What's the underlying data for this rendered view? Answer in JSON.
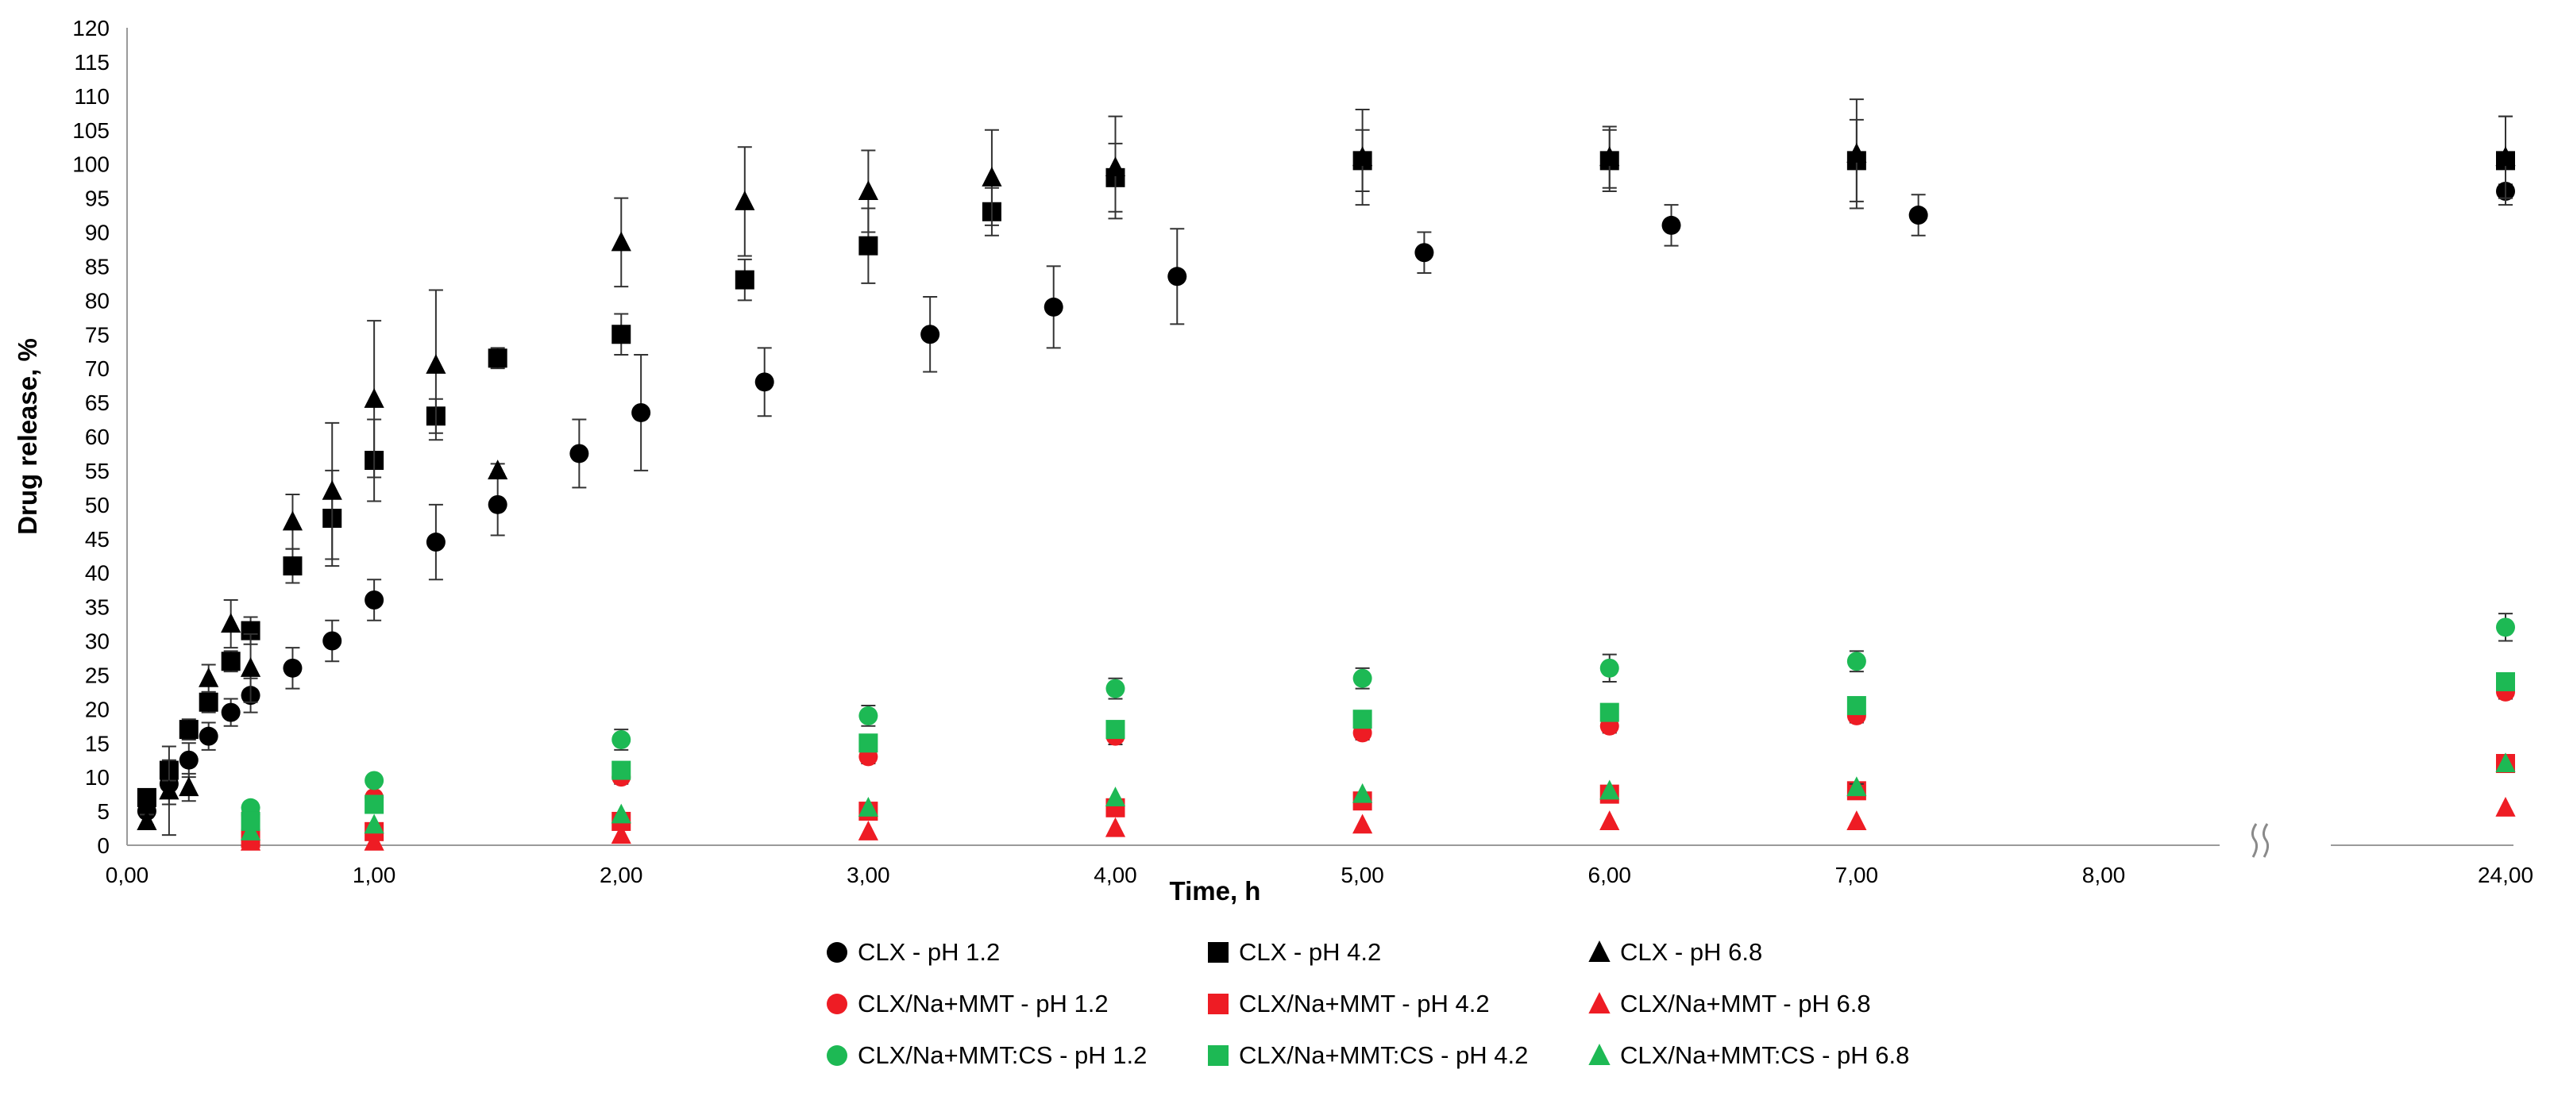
{
  "chart_data": {
    "type": "scatter",
    "xlabel": "Time, h",
    "ylabel": "Drug release, %",
    "ylim": [
      0,
      120
    ],
    "y_ticks": [
      "0",
      "5",
      "10",
      "15",
      "20",
      "25",
      "30",
      "35",
      "40",
      "45",
      "50",
      "55",
      "60",
      "65",
      "70",
      "75",
      "80",
      "85",
      "90",
      "95",
      "100",
      "105",
      "110",
      "115",
      "120"
    ],
    "x_ticks": [
      "0,00",
      "1,00",
      "2,00",
      "3,00",
      "4,00",
      "5,00",
      "6,00",
      "7,00",
      "8,00",
      "24,00"
    ],
    "x_break": "8 to 24",
    "legend_position": "bottom",
    "series": [
      {
        "name": "CLX - pH 1.2",
        "color": "#000000",
        "marker": "circle",
        "points": [
          [
            0.08,
            5
          ],
          [
            0.17,
            9
          ],
          [
            0.25,
            12.5
          ],
          [
            0.33,
            16
          ],
          [
            0.42,
            19.5
          ],
          [
            0.5,
            22
          ],
          [
            0.67,
            26
          ],
          [
            0.83,
            30
          ],
          [
            1.0,
            36
          ],
          [
            1.25,
            44.5
          ],
          [
            1.5,
            50
          ],
          [
            1.83,
            57.5
          ],
          [
            2.08,
            63.5
          ],
          [
            2.58,
            68
          ],
          [
            3.25,
            75
          ],
          [
            3.75,
            79
          ],
          [
            4.25,
            83.5
          ],
          [
            5.25,
            87
          ],
          [
            6.25,
            91
          ],
          [
            7.25,
            92.5
          ],
          [
            24,
            96
          ]
        ],
        "err": [
          2,
          3,
          2.5,
          2,
          2,
          2.5,
          3,
          3,
          3,
          5.5,
          4.5,
          5,
          8.5,
          5,
          5.5,
          6,
          7,
          3,
          3,
          3,
          1
        ]
      },
      {
        "name": "CLX - pH 4.2",
        "color": "#000000",
        "marker": "square",
        "points": [
          [
            0.08,
            7
          ],
          [
            0.17,
            11
          ],
          [
            0.25,
            17
          ],
          [
            0.33,
            21
          ],
          [
            0.42,
            27
          ],
          [
            0.5,
            31.5
          ],
          [
            0.67,
            41
          ],
          [
            0.83,
            48
          ],
          [
            1.0,
            56.5
          ],
          [
            1.25,
            63
          ],
          [
            1.5,
            71.5
          ],
          [
            2.0,
            75
          ],
          [
            2.5,
            83
          ],
          [
            3.0,
            88
          ],
          [
            3.5,
            93
          ],
          [
            4.0,
            98
          ],
          [
            5.0,
            100.5
          ],
          [
            6.0,
            100.5
          ],
          [
            7.0,
            100.5
          ],
          [
            24,
            100.5
          ]
        ],
        "err": [
          1,
          1.5,
          1.5,
          1.5,
          1.5,
          2,
          2.5,
          7,
          6,
          2.5,
          1.5,
          3,
          3,
          5.5,
          3.5,
          5,
          4.5,
          4.5,
          6,
          6.5
        ]
      },
      {
        "name": "CLX - pH 6.8",
        "color": "#000000",
        "marker": "triangle",
        "points": [
          [
            0.08,
            3.5
          ],
          [
            0.17,
            8
          ],
          [
            0.25,
            8.5
          ],
          [
            0.33,
            24.5
          ],
          [
            0.42,
            32.5
          ],
          [
            0.5,
            26
          ],
          [
            0.67,
            47.5
          ],
          [
            0.83,
            52
          ],
          [
            1.0,
            65.5
          ],
          [
            1.25,
            70.5
          ],
          [
            1.5,
            55
          ],
          [
            2.0,
            88.5
          ],
          [
            2.5,
            94.5
          ],
          [
            3.0,
            96
          ],
          [
            3.5,
            98
          ],
          [
            4.0,
            99.5
          ],
          [
            5.0,
            101
          ],
          [
            6.0,
            101
          ],
          [
            7.0,
            101.5
          ],
          [
            24,
            101
          ]
        ],
        "err": [
          1,
          6.5,
          2,
          2,
          3.5,
          5,
          4,
          10,
          11.5,
          11,
          1,
          6.5,
          8,
          6,
          7,
          7.5,
          7,
          4.5,
          8,
          6
        ]
      },
      {
        "name": "CLX/Na+MMT - pH 1.2",
        "color": "#ee1c24",
        "marker": "circle",
        "points": [
          [
            0.5,
            4.5
          ],
          [
            1.0,
            7
          ],
          [
            2.0,
            10
          ],
          [
            3.0,
            13
          ],
          [
            4.0,
            16
          ],
          [
            5.0,
            16.5
          ],
          [
            6.0,
            17.5
          ],
          [
            7.0,
            19
          ],
          [
            24,
            22.5
          ]
        ],
        "err": [
          0,
          0.5,
          1,
          1,
          1.2,
          1,
          1,
          1,
          1
        ]
      },
      {
        "name": "CLX/Na+MMT - pH 4.2",
        "color": "#ee1c24",
        "marker": "square",
        "points": [
          [
            0.5,
            1
          ],
          [
            1.0,
            2
          ],
          [
            2.0,
            3.5
          ],
          [
            3.0,
            5
          ],
          [
            4.0,
            5.5
          ],
          [
            5.0,
            6.5
          ],
          [
            6.0,
            7.5
          ],
          [
            7.0,
            8
          ],
          [
            24,
            12
          ]
        ],
        "err": [
          0,
          0,
          0,
          0,
          0,
          0,
          0,
          0,
          0
        ]
      },
      {
        "name": "CLX/Na+MMT - pH 6.8",
        "color": "#ee1c24",
        "marker": "triangle",
        "points": [
          [
            0.5,
            0.5
          ],
          [
            1.0,
            0.5
          ],
          [
            2.0,
            1.5
          ],
          [
            3.0,
            2
          ],
          [
            4.0,
            2.5
          ],
          [
            5.0,
            3
          ],
          [
            6.0,
            3.5
          ],
          [
            7.0,
            3.5
          ],
          [
            24,
            5.5
          ]
        ],
        "err": [
          0,
          0,
          0,
          0,
          0,
          0,
          0,
          0,
          0
        ]
      },
      {
        "name": "CLX/Na+MMT:CS - pH 1.2",
        "color": "#1db954",
        "marker": "circle",
        "points": [
          [
            0.5,
            5.5
          ],
          [
            1.0,
            9.5
          ],
          [
            2.0,
            15.5
          ],
          [
            3.0,
            19
          ],
          [
            4.0,
            23
          ],
          [
            5.0,
            24.5
          ],
          [
            6.0,
            26
          ],
          [
            7.0,
            27
          ],
          [
            24,
            32
          ]
        ],
        "err": [
          0.5,
          0.8,
          1.5,
          1.5,
          1.5,
          1.5,
          2,
          1.5,
          2
        ]
      },
      {
        "name": "CLX/Na+MMT:CS - pH 4.2",
        "color": "#1db954",
        "marker": "square",
        "points": [
          [
            0.5,
            3.5
          ],
          [
            1.0,
            6
          ],
          [
            2.0,
            11
          ],
          [
            3.0,
            15
          ],
          [
            4.0,
            17
          ],
          [
            5.0,
            18.5
          ],
          [
            6.0,
            19.5
          ],
          [
            7.0,
            20.5
          ],
          [
            24,
            24
          ]
        ],
        "err": [
          0,
          0,
          0.5,
          0.5,
          0.5,
          0.5,
          0.5,
          0.5,
          0.5
        ]
      },
      {
        "name": "CLX/Na+MMT:CS - pH 6.8",
        "color": "#1db954",
        "marker": "triangle",
        "points": [
          [
            0.5,
            2
          ],
          [
            1.0,
            3
          ],
          [
            2.0,
            4.5
          ],
          [
            3.0,
            5.5
          ],
          [
            4.0,
            7
          ],
          [
            5.0,
            7.5
          ],
          [
            6.0,
            8
          ],
          [
            7.0,
            8.5
          ],
          [
            24,
            12
          ]
        ],
        "err": [
          0,
          0,
          0,
          0,
          0,
          0,
          0,
          0.5,
          0
        ]
      }
    ]
  }
}
